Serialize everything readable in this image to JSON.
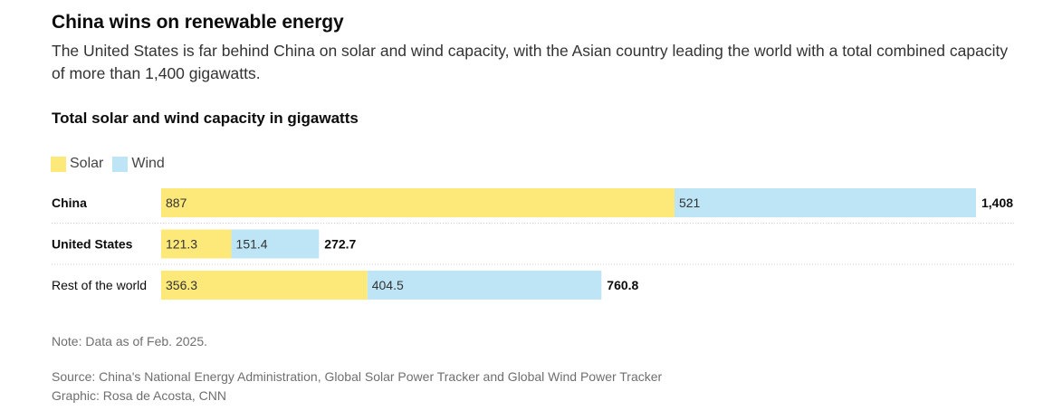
{
  "header": {
    "title": "China wins on renewable energy",
    "subtitle": "The United States is far behind China on solar and wind capacity, with the Asian country leading the world with a total combined capacity of more than 1,400 gigawatts."
  },
  "chart_heading": "Total solar and wind capacity in gigawatts",
  "legend": {
    "items": [
      {
        "label": "Solar",
        "color": "#fde87a"
      },
      {
        "label": "Wind",
        "color": "#bde5f6"
      }
    ]
  },
  "chart_data": {
    "type": "bar",
    "orientation": "horizontal",
    "stacked": true,
    "title": "Total solar and wind capacity in gigawatts",
    "categories": [
      "China",
      "United States",
      "Rest of the world"
    ],
    "category_bold": [
      true,
      true,
      false
    ],
    "series": [
      {
        "name": "Solar",
        "values": [
          887,
          121.3,
          356.3
        ],
        "value_labels": [
          "887",
          "121.3",
          "356.3"
        ],
        "color": "#fde87a"
      },
      {
        "name": "Wind",
        "values": [
          521,
          151.4,
          404.5
        ],
        "value_labels": [
          "521",
          "151.4",
          "404.5"
        ],
        "color": "#bde5f6"
      }
    ],
    "totals": [
      1408,
      272.7,
      760.8
    ],
    "total_labels": [
      "1,408",
      "272.7",
      "760.8"
    ],
    "xlim": [
      0,
      1408
    ],
    "legend_position": "top-left"
  },
  "footer": {
    "note": "Note: Data as of Feb. 2025.",
    "source": "Source: China's National Energy Administration, Global Solar Power Tracker and Global Wind Power Tracker",
    "credit": "Graphic: Rosa de Acosta, CNN"
  }
}
